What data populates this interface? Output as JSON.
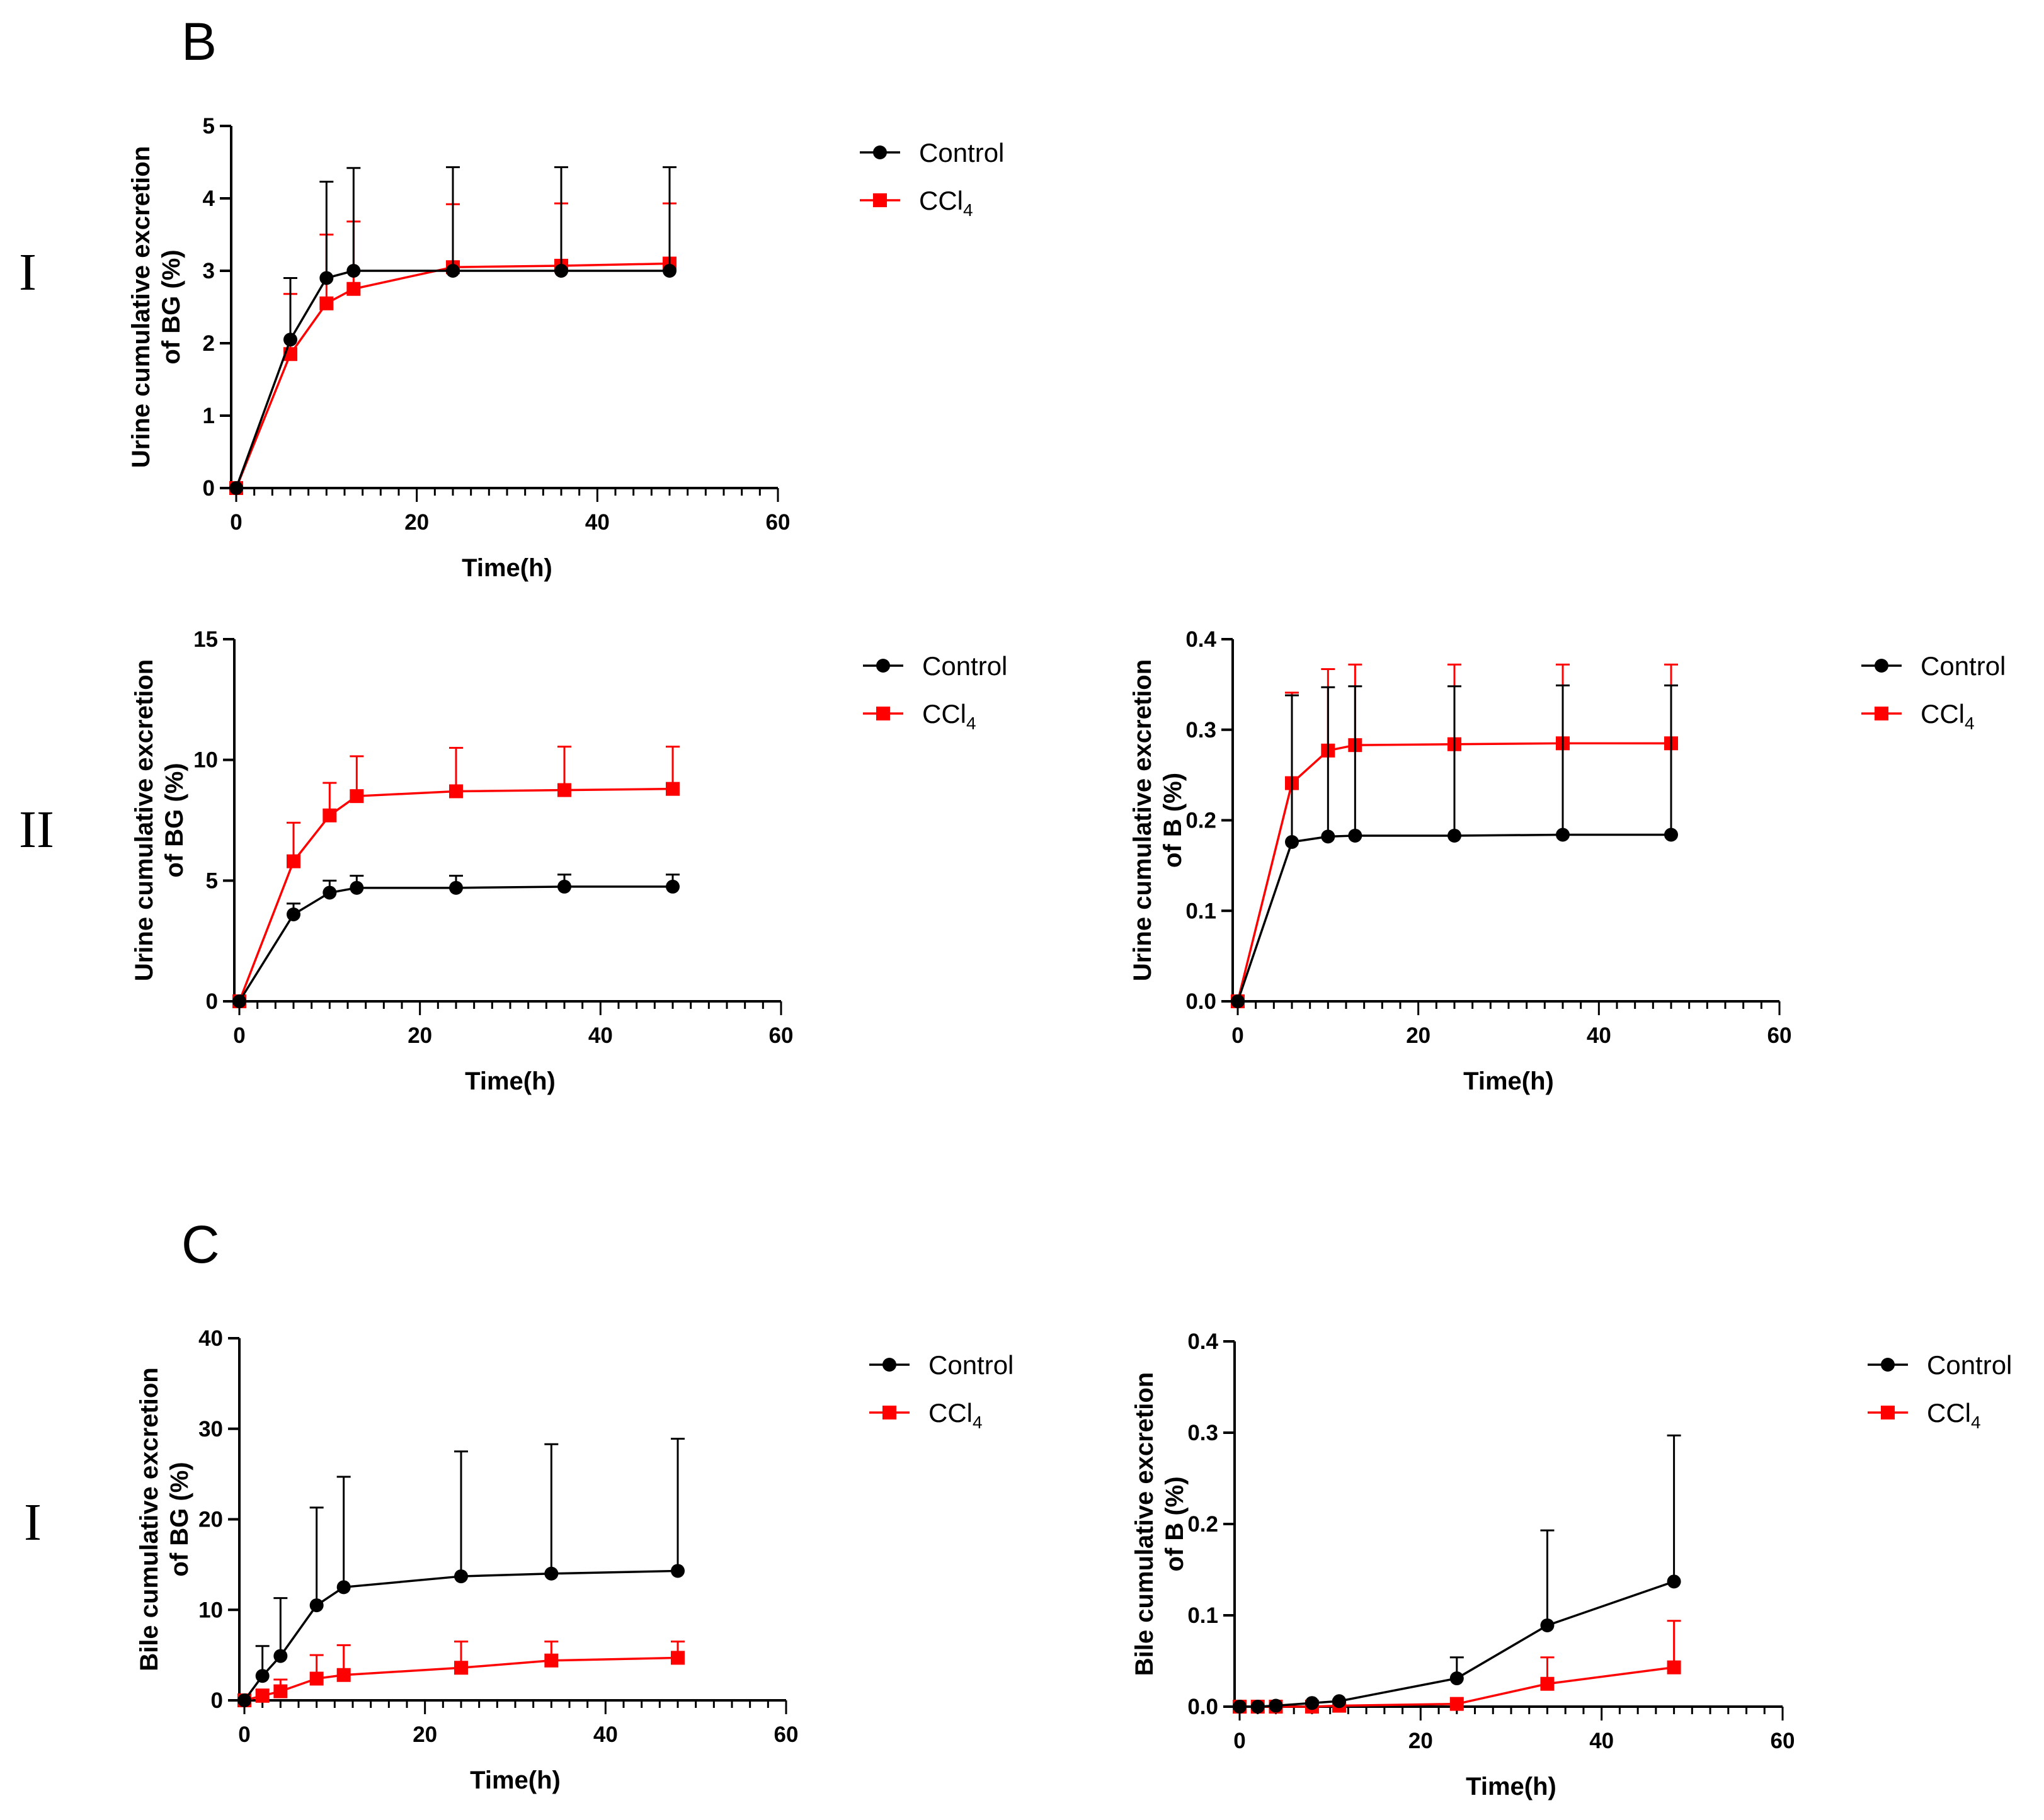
{
  "panel_labels": [
    "B",
    "C"
  ],
  "row_labels": {
    "b1": "I",
    "b2": "II",
    "c1": "I"
  },
  "colors": {
    "Control": "#000000",
    "CCl4": "#ff0000"
  },
  "legend": [
    {
      "name": "Control",
      "base": "Control",
      "sub": ""
    },
    {
      "name": "CCl4",
      "base": "CCl",
      "sub": "4"
    }
  ],
  "chart_data": [
    {
      "id": "B-I-BG",
      "type": "line",
      "panel": "B",
      "row": "I",
      "ylabel_line1": "Urine cumulative excretion",
      "ylabel_line2": "of BG (%)",
      "xlabel": "Time(h)",
      "xlim": [
        0,
        60
      ],
      "xticks": [
        0,
        20,
        40,
        60
      ],
      "xminor": 2,
      "ylim": [
        0,
        5
      ],
      "yticks": [
        0,
        1,
        2,
        3,
        4,
        5
      ],
      "ydecimals": 0,
      "series": [
        {
          "name": "Control",
          "x": [
            0,
            6,
            10,
            13,
            24,
            36,
            48
          ],
          "y": [
            0,
            2.05,
            2.9,
            3.0,
            3.0,
            3.0,
            3.0
          ],
          "err": [
            0,
            0.85,
            1.33,
            1.42,
            1.43,
            1.43,
            1.43
          ]
        },
        {
          "name": "CCl4",
          "x": [
            0,
            6,
            10,
            13,
            24,
            36,
            48
          ],
          "y": [
            0,
            1.85,
            2.55,
            2.75,
            3.05,
            3.07,
            3.1
          ],
          "err": [
            0,
            0.83,
            0.95,
            0.93,
            0.87,
            0.86,
            0.83
          ]
        }
      ]
    },
    {
      "id": "B-II-BG",
      "type": "line",
      "panel": "B",
      "row": "II",
      "ylabel_line1": "Urine cumulative excretion",
      "ylabel_line2": "of BG (%)",
      "xlabel": "Time(h)",
      "xlim": [
        0,
        60
      ],
      "xticks": [
        0,
        20,
        40,
        60
      ],
      "xminor": 2,
      "ylim": [
        0,
        15
      ],
      "yticks": [
        0,
        5,
        10,
        15
      ],
      "ydecimals": 0,
      "series": [
        {
          "name": "Control",
          "x": [
            0,
            6,
            10,
            13,
            24,
            36,
            48
          ],
          "y": [
            0,
            3.6,
            4.5,
            4.7,
            4.7,
            4.75,
            4.75
          ],
          "err": [
            0,
            0.45,
            0.5,
            0.5,
            0.5,
            0.5,
            0.5
          ]
        },
        {
          "name": "CCl4",
          "x": [
            0,
            6,
            10,
            13,
            24,
            36,
            48
          ],
          "y": [
            0,
            5.8,
            7.7,
            8.5,
            8.7,
            8.75,
            8.8
          ],
          "err": [
            0,
            1.6,
            1.35,
            1.65,
            1.8,
            1.8,
            1.75
          ]
        }
      ]
    },
    {
      "id": "B-II-B",
      "type": "line",
      "panel": "B",
      "row": "II",
      "ylabel_line1": "Urine cumulative excretion",
      "ylabel_line2": "of B (%)",
      "xlabel": "Time(h)",
      "xlim": [
        0,
        60
      ],
      "xticks": [
        0,
        20,
        40,
        60
      ],
      "xminor": 2,
      "ylim": [
        0,
        0.4
      ],
      "yticks": [
        0.0,
        0.1,
        0.2,
        0.3,
        0.4
      ],
      "ydecimals": 1,
      "series": [
        {
          "name": "Control",
          "x": [
            0,
            6,
            10,
            13,
            24,
            36,
            48
          ],
          "y": [
            0,
            0.176,
            0.182,
            0.183,
            0.183,
            0.184,
            0.184
          ],
          "err": [
            0,
            0.162,
            0.165,
            0.165,
            0.165,
            0.165,
            0.165
          ]
        },
        {
          "name": "CCl4",
          "x": [
            0,
            6,
            10,
            13,
            24,
            36,
            48
          ],
          "y": [
            0,
            0.241,
            0.277,
            0.283,
            0.284,
            0.285,
            0.285
          ],
          "err": [
            0,
            0.1,
            0.09,
            0.089,
            0.088,
            0.087,
            0.087
          ]
        }
      ]
    },
    {
      "id": "C-I-BG",
      "type": "line",
      "panel": "C",
      "row": "I",
      "ylabel_line1": "Bile cumulative excretion",
      "ylabel_line2": "of BG (%)",
      "xlabel": "Time(h)",
      "xlim": [
        0,
        60
      ],
      "xticks": [
        0,
        20,
        40,
        60
      ],
      "xminor": 2,
      "ylim": [
        0,
        40
      ],
      "yticks": [
        0,
        10,
        20,
        30,
        40
      ],
      "ydecimals": 0,
      "series": [
        {
          "name": "Control",
          "x": [
            0,
            2,
            4,
            8,
            11,
            24,
            34,
            48
          ],
          "y": [
            0,
            2.7,
            4.9,
            10.5,
            12.5,
            13.7,
            14.0,
            14.3
          ],
          "err": [
            0,
            3.3,
            6.4,
            10.8,
            12.2,
            13.8,
            14.3,
            14.6
          ]
        },
        {
          "name": "CCl4",
          "x": [
            0,
            2,
            4,
            8,
            11,
            24,
            34,
            48
          ],
          "y": [
            0,
            0.5,
            1.0,
            2.4,
            2.8,
            3.6,
            4.4,
            4.7
          ],
          "err": [
            0,
            0.7,
            1.3,
            2.6,
            3.3,
            2.9,
            2.1,
            1.8
          ]
        }
      ]
    },
    {
      "id": "C-I-B",
      "type": "line",
      "panel": "C",
      "row": "I",
      "ylabel_line1": "Bile cumulative excretion",
      "ylabel_line2": "of B (%)",
      "xlabel": "Time(h)",
      "xlim": [
        0,
        60
      ],
      "xticks": [
        0,
        20,
        40,
        60
      ],
      "xminor": 2,
      "ylim": [
        0,
        0.4
      ],
      "yticks": [
        0.0,
        0.1,
        0.2,
        0.3,
        0.4
      ],
      "ydecimals": 1,
      "series": [
        {
          "name": "Control",
          "x": [
            0,
            2,
            4,
            8,
            11,
            24,
            34,
            48
          ],
          "y": [
            0,
            0,
            0.001,
            0.004,
            0.006,
            0.031,
            0.089,
            0.137
          ],
          "err": [
            0,
            0,
            0,
            0,
            0,
            0.023,
            0.104,
            0.16
          ]
        },
        {
          "name": "CCl4",
          "x": [
            0,
            2,
            4,
            8,
            11,
            24,
            34,
            48
          ],
          "y": [
            0,
            0,
            0,
            0,
            0.001,
            0.003,
            0.025,
            0.043
          ],
          "err": [
            0,
            0,
            0,
            0,
            0,
            0,
            0.029,
            0.051
          ]
        }
      ]
    }
  ]
}
